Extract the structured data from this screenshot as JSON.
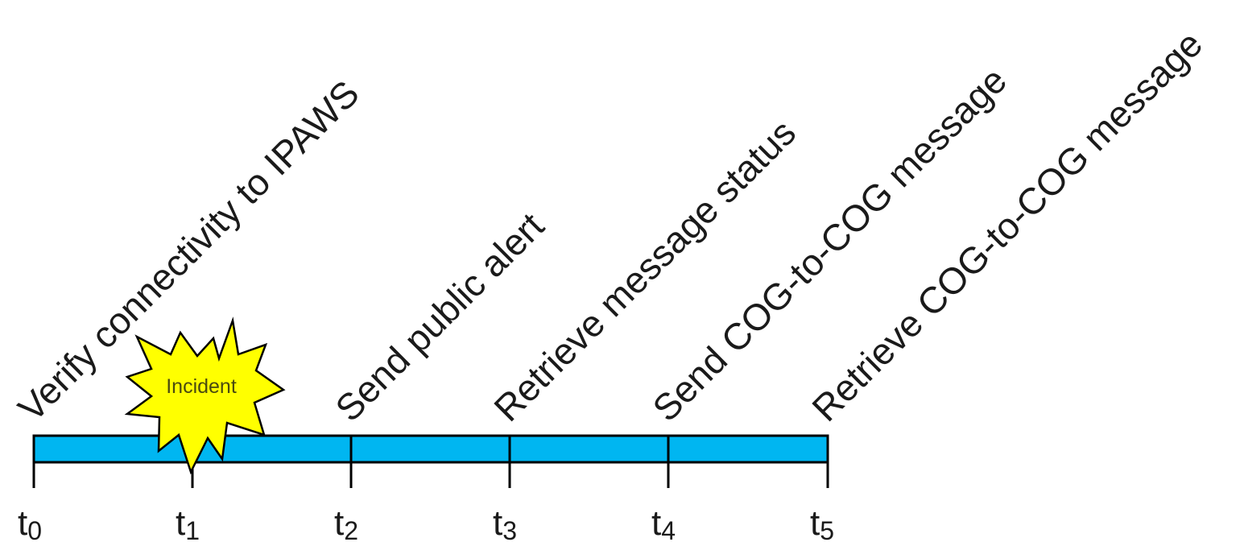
{
  "timeline": {
    "events": [
      {
        "label": "Verify connectivity to IPAWS"
      },
      {
        "label": "Send public alert"
      },
      {
        "label": "Retrieve message status"
      },
      {
        "label": "Send COG-to-COG message"
      },
      {
        "label": "Retrieve COG-to-COG message"
      }
    ],
    "ticks": [
      {
        "main": "t",
        "sub": "0"
      },
      {
        "main": "t",
        "sub": "1"
      },
      {
        "main": "t",
        "sub": "2"
      },
      {
        "main": "t",
        "sub": "3"
      },
      {
        "main": "t",
        "sub": "4"
      },
      {
        "main": "t",
        "sub": "5"
      }
    ],
    "incident": {
      "label": "Incident"
    },
    "colors": {
      "bar": "#00b6f1",
      "starburst": "#ffff00",
      "outline": "#000000"
    }
  }
}
